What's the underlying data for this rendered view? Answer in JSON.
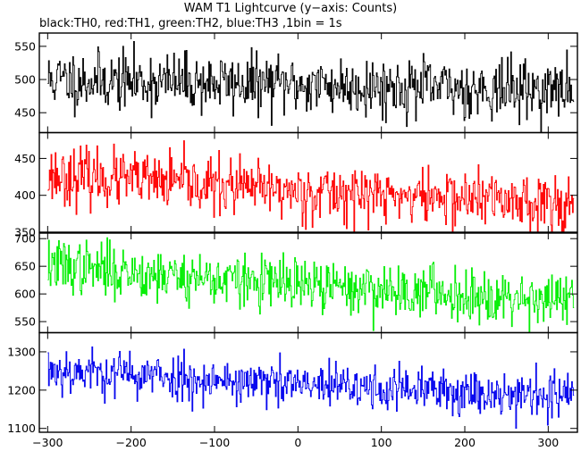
{
  "chart_data": {
    "type": "line",
    "title": "WAM T1 Lightcurve (y−axis: Counts)",
    "subtitle": "black:TH0, red:TH1, green:TH2, blue:TH3 ,1bin = 1s",
    "xlabel": "",
    "ylabel": "",
    "xlim": [
      -310,
      335
    ],
    "x_ticks": [
      -300,
      -200,
      -100,
      0,
      100,
      200,
      300
    ],
    "x_tick_labels": [
      "−300",
      "−200",
      "−100",
      "0",
      "100",
      "200",
      "300"
    ],
    "bin_width": 1,
    "x_start": -300,
    "x_end": 330,
    "grid": false,
    "panels": [
      {
        "name": "TH0",
        "color": "#000000",
        "ylim": [
          420,
          570
        ],
        "y_ticks": [
          450,
          500,
          550
        ],
        "y_tick_labels": [
          "450",
          "500",
          "550"
        ],
        "trend": [
          [
            -300,
            500
          ],
          [
            0,
            492
          ],
          [
            330,
            483
          ]
        ],
        "noise_sd": 22,
        "seed": 11
      },
      {
        "name": "TH1",
        "color": "#ff0000",
        "ylim": [
          350,
          485
        ],
        "y_ticks": [
          350,
          400,
          450
        ],
        "y_tick_labels": [
          "350",
          "400",
          "450"
        ],
        "trend": [
          [
            -300,
            428
          ],
          [
            0,
            405
          ],
          [
            330,
            390
          ]
        ],
        "noise_sd": 19,
        "seed": 23
      },
      {
        "name": "TH2",
        "color": "#00ee00",
        "ylim": [
          530,
          710
        ],
        "y_ticks": [
          550,
          600,
          650,
          700
        ],
        "y_tick_labels": [
          "550",
          "600",
          "650",
          "700"
        ],
        "trend": [
          [
            -300,
            652
          ],
          [
            0,
            615
          ],
          [
            330,
            590
          ]
        ],
        "noise_sd": 24,
        "seed": 37
      },
      {
        "name": "TH3",
        "color": "#0000ee",
        "ylim": [
          1090,
          1350
        ],
        "y_ticks": [
          1100,
          1200,
          1300
        ],
        "y_tick_labels": [
          "1100",
          "1200",
          "1300"
        ],
        "trend": [
          [
            -300,
            1255
          ],
          [
            0,
            1212
          ],
          [
            330,
            1185
          ]
        ],
        "noise_sd": 30,
        "seed": 53
      }
    ]
  }
}
